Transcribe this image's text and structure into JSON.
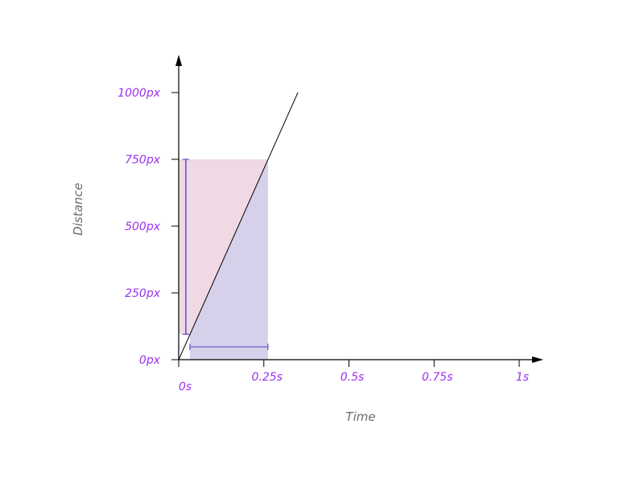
{
  "chart_data": {
    "type": "line",
    "xlabel": "Time",
    "ylabel": "Distance",
    "xlim": [
      0,
      1
    ],
    "ylim": [
      0,
      1000
    ],
    "x_ticks": [
      {
        "value": 0,
        "label": "0s"
      },
      {
        "value": 0.25,
        "label": "0.25s"
      },
      {
        "value": 0.5,
        "label": "0.5s"
      },
      {
        "value": 0.75,
        "label": "0.75s"
      },
      {
        "value": 1,
        "label": "1s"
      }
    ],
    "y_ticks": [
      {
        "value": 0,
        "label": "0px"
      },
      {
        "value": 250,
        "label": "250px"
      },
      {
        "value": 500,
        "label": "500px"
      },
      {
        "value": 750,
        "label": "750px"
      },
      {
        "value": 1000,
        "label": "1000px"
      }
    ],
    "series": [
      {
        "x": [
          0,
          0.35
        ],
        "y": [
          0,
          1000
        ]
      }
    ],
    "regions": {
      "above_line": {
        "x": [
          0,
          0.262
        ],
        "y": [
          95,
          750
        ],
        "color": "#f0d8e4"
      },
      "below_line": {
        "x": [
          0.033,
          0.262
        ],
        "y": [
          0,
          750
        ],
        "color": "#d6d0ea"
      }
    },
    "brackets": {
      "vertical": {
        "x": 0.021,
        "y": [
          95,
          750
        ]
      },
      "horizontal": {
        "y": 48,
        "x": [
          0.033,
          0.262
        ]
      }
    },
    "colors": {
      "tick_text": "#9b30f0",
      "axis_title": "#6b6b6b",
      "bracket": "#5b4fc9",
      "line": "#000000"
    }
  }
}
